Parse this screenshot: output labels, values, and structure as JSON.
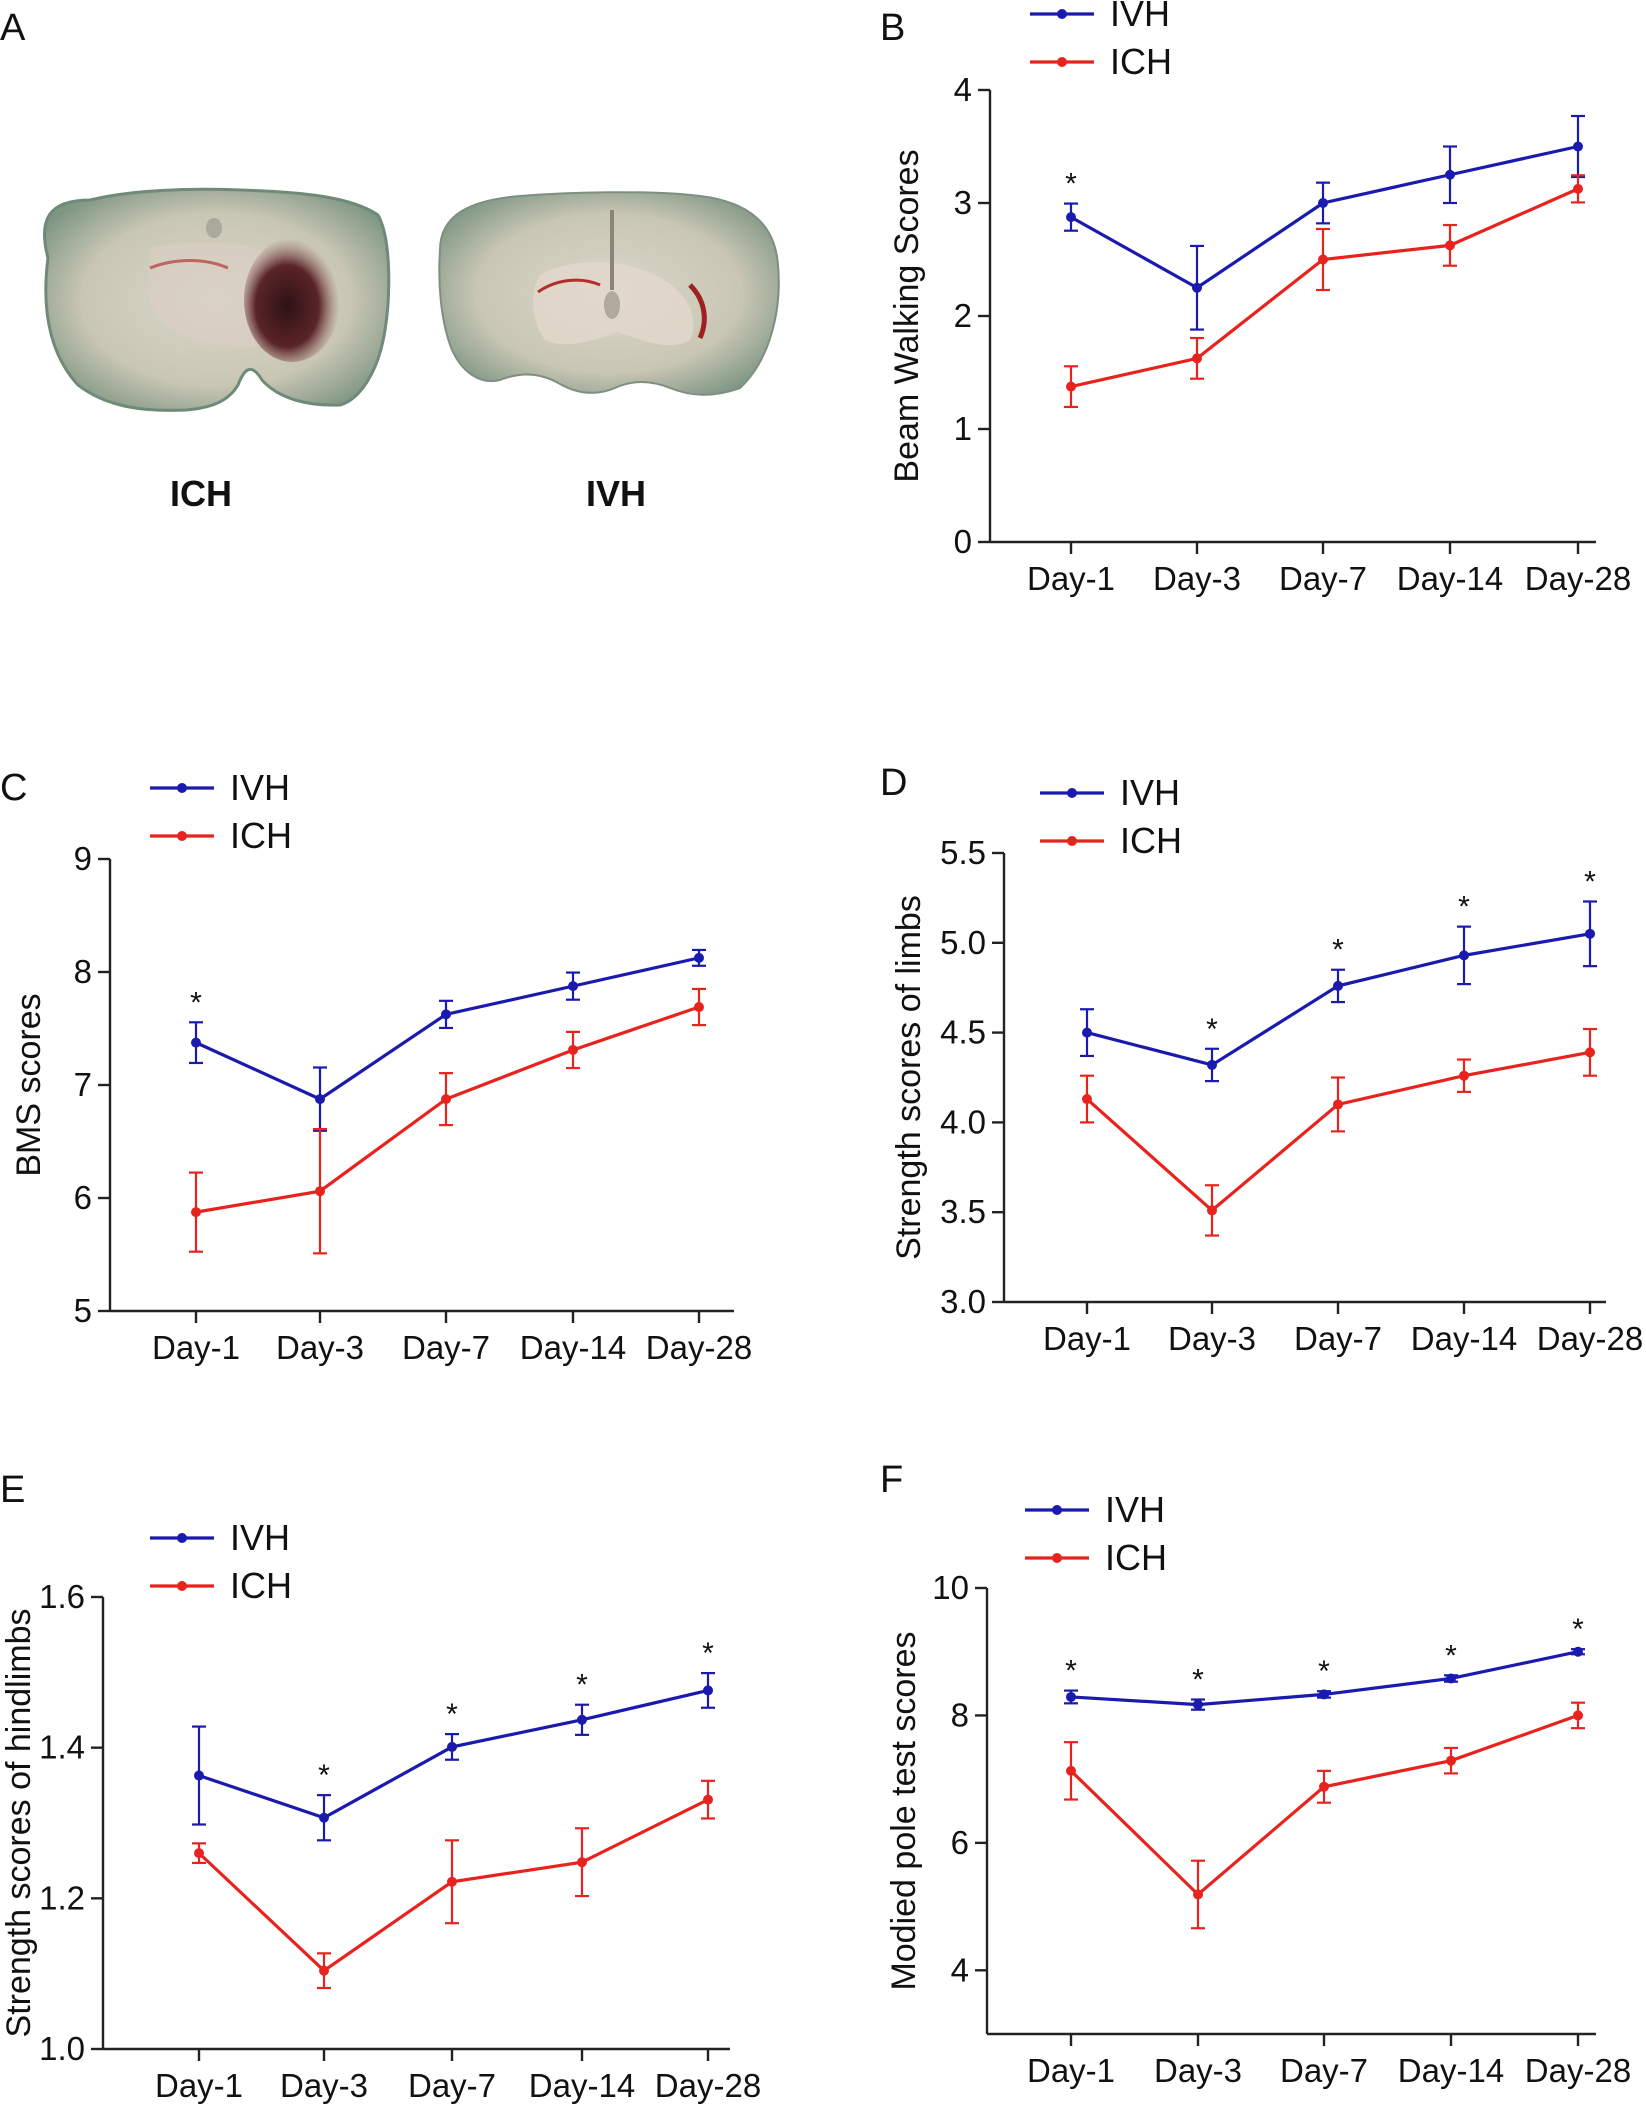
{
  "panel_a": {
    "label": "A",
    "slices": [
      {
        "name": "ICH"
      },
      {
        "name": "IVH"
      }
    ]
  },
  "colors": {
    "IVH": "#1a1aae",
    "ICH": "#e8231e"
  },
  "chart_data": [
    {
      "panel": "B",
      "type": "line",
      "ylabel": "Beam Walking Scores",
      "categories": [
        "Day-1",
        "Day-3",
        "Day-7",
        "Day-14",
        "Day-28"
      ],
      "ylim": [
        0,
        4
      ],
      "yticks": [
        0,
        1,
        2,
        3,
        4
      ],
      "ytick_labels": [
        "0",
        "1",
        "2",
        "3",
        "4"
      ],
      "legend": [
        "IVH",
        "ICH"
      ],
      "series": [
        {
          "name": "IVH",
          "values": [
            2.875,
            2.25,
            3.0,
            3.25,
            3.5
          ],
          "errors": [
            0.12,
            0.37,
            0.18,
            0.25,
            0.27
          ]
        },
        {
          "name": "ICH",
          "values": [
            1.375,
            1.625,
            2.5,
            2.625,
            3.125
          ],
          "errors": [
            0.18,
            0.18,
            0.27,
            0.18,
            0.12
          ]
        }
      ],
      "significance": [
        "*",
        "",
        "",
        "",
        ""
      ]
    },
    {
      "panel": "C",
      "type": "line",
      "ylabel": "BMS scores",
      "categories": [
        "Day-1",
        "Day-3",
        "Day-7",
        "Day-14",
        "Day-28"
      ],
      "ylim": [
        5,
        9
      ],
      "yticks": [
        5,
        6,
        7,
        8,
        9
      ],
      "ytick_labels": [
        "5",
        "6",
        "7",
        "8",
        "9"
      ],
      "legend": [
        "IVH",
        "ICH"
      ],
      "series": [
        {
          "name": "IVH",
          "values": [
            7.375,
            6.875,
            7.625,
            7.875,
            8.125
          ],
          "errors": [
            0.18,
            0.28,
            0.12,
            0.12,
            0.07
          ]
        },
        {
          "name": "ICH",
          "values": [
            5.875,
            6.06,
            6.875,
            7.31,
            7.69
          ],
          "errors": [
            0.35,
            0.55,
            0.23,
            0.16,
            0.16
          ]
        }
      ],
      "significance": [
        "*",
        "",
        "",
        "",
        ""
      ]
    },
    {
      "panel": "D",
      "type": "line",
      "ylabel": "Strength scores of limbs",
      "categories": [
        "Day-1",
        "Day-3",
        "Day-7",
        "Day-14",
        "Day-28"
      ],
      "ylim": [
        3.0,
        5.5
      ],
      "yticks": [
        3.0,
        3.5,
        4.0,
        4.5,
        5.0,
        5.5
      ],
      "ytick_labels": [
        "3.0",
        "3.5",
        "4.0",
        "4.5",
        "5.0",
        "5.5"
      ],
      "legend": [
        "IVH",
        "ICH"
      ],
      "series": [
        {
          "name": "IVH",
          "values": [
            4.5,
            4.32,
            4.76,
            4.93,
            5.05
          ],
          "errors": [
            0.13,
            0.09,
            0.09,
            0.16,
            0.18
          ]
        },
        {
          "name": "ICH",
          "values": [
            4.13,
            3.51,
            4.1,
            4.26,
            4.39
          ],
          "errors": [
            0.13,
            0.14,
            0.15,
            0.09,
            0.13
          ]
        }
      ],
      "significance": [
        "",
        "*",
        "*",
        "*",
        "*"
      ]
    },
    {
      "panel": "E",
      "type": "line",
      "ylabel": "Strength scores of hindlimbs",
      "categories": [
        "Day-1",
        "Day-3",
        "Day-7",
        "Day-14",
        "Day-28"
      ],
      "ylim": [
        1.0,
        1.6
      ],
      "yticks": [
        1.0,
        1.2,
        1.4,
        1.6
      ],
      "ytick_labels": [
        "1.0",
        "1.2",
        "1.4",
        "1.6"
      ],
      "legend": [
        "IVH",
        "ICH"
      ],
      "series": [
        {
          "name": "IVH",
          "values": [
            1.363,
            1.307,
            1.401,
            1.437,
            1.476
          ],
          "errors": [
            0.065,
            0.03,
            0.017,
            0.02,
            0.023
          ]
        },
        {
          "name": "ICH",
          "values": [
            1.26,
            1.104,
            1.222,
            1.248,
            1.331
          ],
          "errors": [
            0.013,
            0.023,
            0.055,
            0.045,
            0.025
          ]
        }
      ],
      "significance": [
        "",
        "*",
        "*",
        "*",
        "*"
      ]
    },
    {
      "panel": "F",
      "type": "line",
      "ylabel": "Modied pole test scores",
      "categories": [
        "Day-1",
        "Day-3",
        "Day-7",
        "Day-14",
        "Day-28"
      ],
      "ylim": [
        3,
        10
      ],
      "yticks": [
        4,
        6,
        8,
        10
      ],
      "ytick_labels": [
        "4",
        "6",
        "8",
        "10"
      ],
      "legend": [
        "IVH",
        "ICH"
      ],
      "series": [
        {
          "name": "IVH",
          "values": [
            8.29,
            8.17,
            8.33,
            8.58,
            9.0
          ],
          "errors": [
            0.1,
            0.08,
            0.05,
            0.05,
            0.04
          ]
        },
        {
          "name": "ICH",
          "values": [
            7.13,
            5.19,
            6.88,
            7.29,
            8.0
          ],
          "errors": [
            0.45,
            0.53,
            0.25,
            0.2,
            0.2
          ]
        }
      ],
      "significance": [
        "*",
        "*",
        "*",
        "*",
        "*"
      ]
    }
  ]
}
